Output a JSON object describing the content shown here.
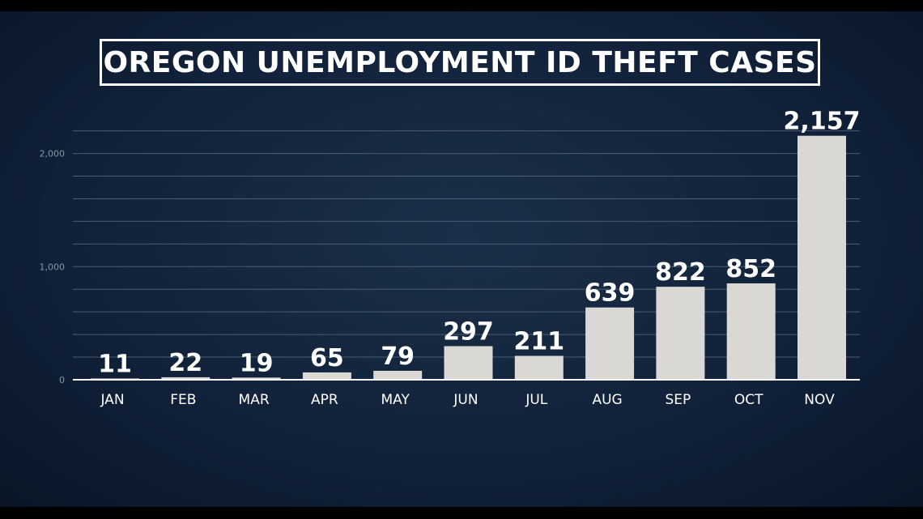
{
  "chart_data": {
    "type": "bar",
    "title": "OREGON UNEMPLOYMENT ID THEFT CASES",
    "categories": [
      "JAN",
      "FEB",
      "MAR",
      "APR",
      "MAY",
      "JUN",
      "JUL",
      "AUG",
      "SEP",
      "OCT",
      "NOV"
    ],
    "values": [
      11,
      22,
      19,
      65,
      79,
      297,
      211,
      639,
      822,
      852,
      2157
    ],
    "value_labels": [
      "11",
      "22",
      "19",
      "65",
      "79",
      "297",
      "211",
      "639",
      "822",
      "852",
      "2,157"
    ],
    "ylim": [
      0,
      2200
    ],
    "y_ticks": [
      0,
      1000,
      2000
    ],
    "y_tick_labels": [
      "0",
      "1,000",
      "2,000"
    ],
    "grid": true,
    "legend": "none",
    "colors": {
      "bar": "#d9d8d5",
      "background": "#11223a",
      "gridline": "#4a5d72",
      "text": "#ffffff"
    }
  }
}
